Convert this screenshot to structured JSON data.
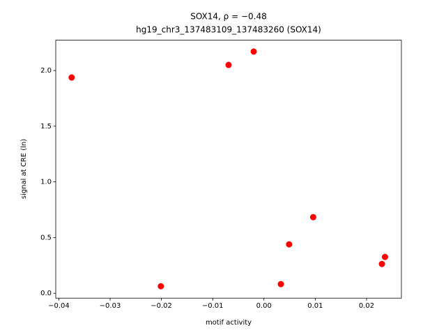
{
  "chart_data": {
    "type": "scatter",
    "title": "SOX14, ρ = −0.48",
    "subtitle": "hg19_chr3_137483109_137483260 (SOX14)",
    "x_label": "motif activity",
    "y_label": "signal at CRE (ln)",
    "color": "#ff0000",
    "x": [
      -0.0375,
      -0.0201,
      -0.0069,
      -0.002,
      0.0033,
      0.0049,
      0.0096,
      0.023,
      0.0236
    ],
    "values": [
      1.937,
      0.063,
      2.05,
      2.17,
      0.082,
      0.439,
      0.683,
      0.263,
      0.326
    ],
    "xlim": [
      -0.0406,
      0.0268
    ],
    "ylim": [
      -0.044,
      2.272
    ],
    "xticks": [
      {
        "value": -0.04,
        "label": "−0.04"
      },
      {
        "value": -0.03,
        "label": "−0.03"
      },
      {
        "value": -0.02,
        "label": "−0.02"
      },
      {
        "value": -0.01,
        "label": "−0.01"
      },
      {
        "value": 0,
        "label": "0.00"
      },
      {
        "value": 0.01,
        "label": "0.01"
      },
      {
        "value": 0.02,
        "label": "0.02"
      }
    ],
    "yticks": [
      {
        "value": 0,
        "label": "0.0"
      },
      {
        "value": 0.5,
        "label": "0.5"
      },
      {
        "value": 1,
        "label": "1.0"
      },
      {
        "value": 1.5,
        "label": "1.5"
      },
      {
        "value": 2,
        "label": "2.0"
      }
    ]
  }
}
